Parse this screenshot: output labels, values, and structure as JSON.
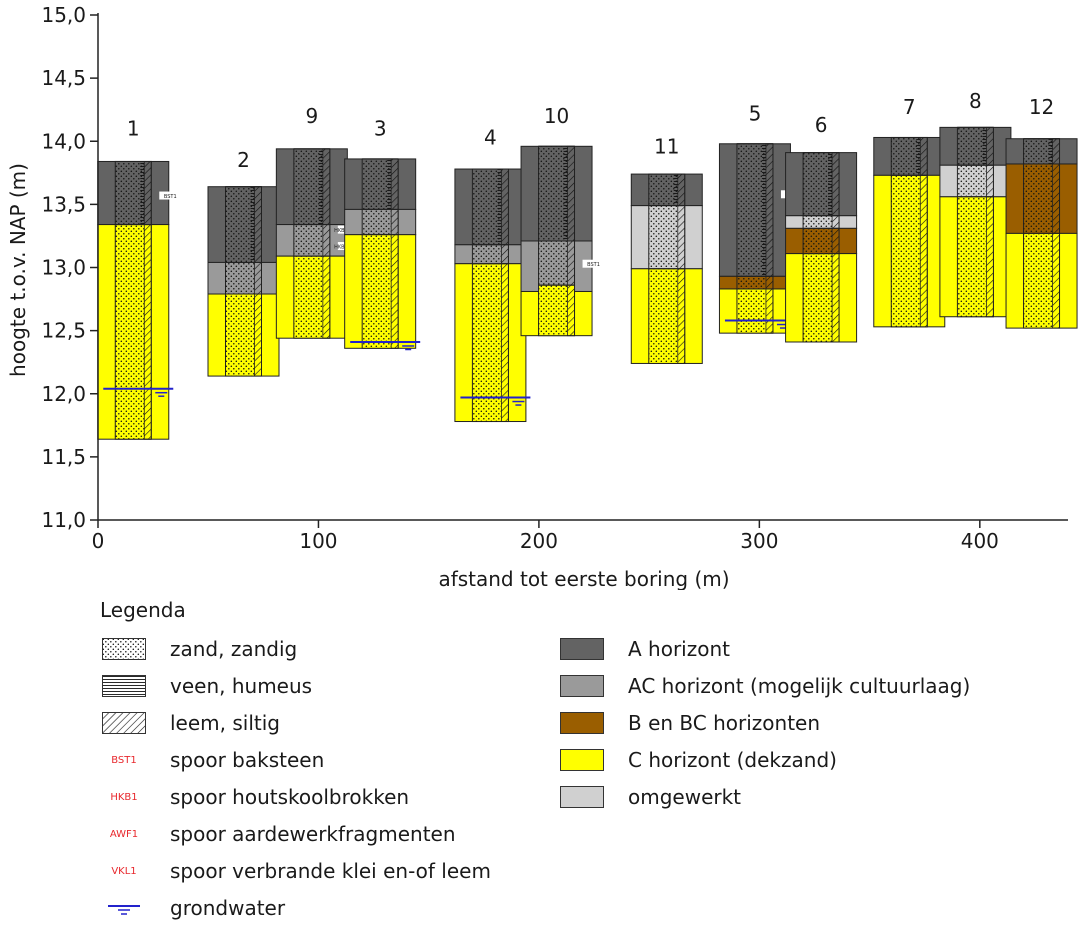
{
  "chart_data": {
    "type": "soil-profile-cross-section",
    "xlabel": "afstand tot eerste boring (m)",
    "ylabel": "hoogte t.o.v. NAP (m)",
    "xlim": [
      0,
      440
    ],
    "ylim": [
      11.0,
      15.0
    ],
    "x_ticks": [
      "0",
      "100",
      "200",
      "300",
      "400"
    ],
    "y_ticks": [
      "11,0",
      "11,5",
      "12,0",
      "12,5",
      "13,0",
      "13,5",
      "14,0",
      "14,5",
      "15,0"
    ],
    "borings": [
      {
        "label": "1",
        "x": 16,
        "top": 13.84,
        "bottom": 11.64,
        "label_y": 14.1,
        "profile": [
          {
            "from": 13.84,
            "to": 13.34,
            "horizon": "A"
          },
          {
            "from": 13.34,
            "to": 11.64,
            "horizon": "C"
          }
        ],
        "core": [
          {
            "from": 13.84,
            "to": 13.34,
            "horizon": "A"
          },
          {
            "from": 13.34,
            "to": 11.64,
            "horizon": "C"
          }
        ],
        "code_marks": [
          {
            "code": "BST1",
            "y": 13.57
          }
        ],
        "groundwater": 12.04
      },
      {
        "label": "2",
        "x": 66,
        "top": 13.64,
        "bottom": 12.14,
        "label_y": 13.85,
        "profile": [
          {
            "from": 13.64,
            "to": 13.04,
            "horizon": "A"
          },
          {
            "from": 13.04,
            "to": 12.79,
            "horizon": "AC"
          },
          {
            "from": 12.79,
            "to": 12.14,
            "horizon": "C"
          }
        ],
        "core": [
          {
            "from": 13.64,
            "to": 13.04,
            "horizon": "A"
          },
          {
            "from": 13.04,
            "to": 12.79,
            "horizon": "AC"
          },
          {
            "from": 12.79,
            "to": 12.14,
            "horizon": "C"
          }
        ],
        "code_marks": [],
        "groundwater": null
      },
      {
        "label": "9",
        "x": 97,
        "top": 13.94,
        "bottom": 12.44,
        "label_y": 14.2,
        "profile": [
          {
            "from": 13.94,
            "to": 13.34,
            "horizon": "A"
          },
          {
            "from": 13.34,
            "to": 13.09,
            "horizon": "AC"
          },
          {
            "from": 13.09,
            "to": 12.44,
            "horizon": "C"
          }
        ],
        "core": [
          {
            "from": 13.94,
            "to": 13.34,
            "horizon": "A"
          },
          {
            "from": 13.34,
            "to": 13.09,
            "horizon": "AC"
          },
          {
            "from": 13.09,
            "to": 12.44,
            "horizon": "C"
          }
        ],
        "code_marks": [
          {
            "code": "HKB1 AWF1",
            "y": 13.3
          },
          {
            "code": "HKB1 AWF1",
            "y": 13.17
          }
        ],
        "groundwater": null
      },
      {
        "label": "3",
        "x": 128,
        "top": 13.86,
        "bottom": 12.36,
        "label_y": 14.1,
        "profile": [
          {
            "from": 13.86,
            "to": 13.46,
            "horizon": "A"
          },
          {
            "from": 13.46,
            "to": 13.26,
            "horizon": "AC"
          },
          {
            "from": 13.26,
            "to": 12.36,
            "horizon": "C"
          }
        ],
        "core": [
          {
            "from": 13.86,
            "to": 13.46,
            "horizon": "A"
          },
          {
            "from": 13.46,
            "to": 13.26,
            "horizon": "AC"
          },
          {
            "from": 13.26,
            "to": 12.36,
            "horizon": "C"
          }
        ],
        "code_marks": [],
        "groundwater": 12.41
      },
      {
        "label": "4",
        "x": 178,
        "top": 13.78,
        "bottom": 11.78,
        "label_y": 14.03,
        "profile": [
          {
            "from": 13.78,
            "to": 13.18,
            "horizon": "A"
          },
          {
            "from": 13.18,
            "to": 13.03,
            "horizon": "AC"
          },
          {
            "from": 13.03,
            "to": 11.78,
            "horizon": "C"
          }
        ],
        "core": [
          {
            "from": 13.78,
            "to": 13.18,
            "horizon": "A"
          },
          {
            "from": 13.18,
            "to": 13.03,
            "horizon": "AC"
          },
          {
            "from": 13.03,
            "to": 11.78,
            "horizon": "C"
          }
        ],
        "code_marks": [],
        "groundwater": 11.97
      },
      {
        "label": "10",
        "x": 208,
        "top": 13.96,
        "bottom": 12.46,
        "label_y": 14.2,
        "profile": [
          {
            "from": 13.96,
            "to": 13.21,
            "horizon": "A"
          },
          {
            "from": 13.21,
            "to": 12.81,
            "horizon": "AC"
          },
          {
            "from": 12.81,
            "to": 12.46,
            "horizon": "C"
          }
        ],
        "core": [
          {
            "from": 13.96,
            "to": 13.21,
            "horizon": "A"
          },
          {
            "from": 13.21,
            "to": 12.86,
            "horizon": "AC"
          },
          {
            "from": 12.86,
            "to": 12.46,
            "horizon": "C"
          }
        ],
        "code_marks": [
          {
            "code": "BST1",
            "y": 13.03
          }
        ],
        "groundwater": null
      },
      {
        "label": "11",
        "x": 258,
        "top": 13.74,
        "bottom": 12.24,
        "label_y": 13.96,
        "profile": [
          {
            "from": 13.74,
            "to": 13.49,
            "horizon": "A"
          },
          {
            "from": 13.49,
            "to": 12.99,
            "horizon": "omgewerkt"
          },
          {
            "from": 12.99,
            "to": 12.24,
            "horizon": "C"
          }
        ],
        "core": [
          {
            "from": 13.74,
            "to": 13.49,
            "horizon": "A"
          },
          {
            "from": 13.49,
            "to": 12.99,
            "horizon": "omgewerkt"
          },
          {
            "from": 12.99,
            "to": 12.24,
            "horizon": "C"
          }
        ],
        "code_marks": [],
        "groundwater": null
      },
      {
        "label": "5",
        "x": 298,
        "top": 13.98,
        "bottom": 12.48,
        "label_y": 14.22,
        "profile": [
          {
            "from": 13.98,
            "to": 12.93,
            "horizon": "A"
          },
          {
            "from": 12.93,
            "to": 12.83,
            "horizon": "B"
          },
          {
            "from": 12.83,
            "to": 12.48,
            "horizon": "C"
          }
        ],
        "core": [
          {
            "from": 13.98,
            "to": 12.93,
            "horizon": "A"
          },
          {
            "from": 12.93,
            "to": 12.83,
            "horizon": "B"
          },
          {
            "from": 12.83,
            "to": 12.48,
            "horizon": "C"
          }
        ],
        "code_marks": [
          {
            "code": "BST1",
            "y": 13.58
          }
        ],
        "groundwater": 12.58
      },
      {
        "label": "6",
        "x": 328,
        "top": 13.91,
        "bottom": 12.41,
        "label_y": 14.13,
        "profile": [
          {
            "from": 13.91,
            "to": 13.41,
            "horizon": "A"
          },
          {
            "from": 13.41,
            "to": 13.31,
            "horizon": "omgewerkt"
          },
          {
            "from": 13.31,
            "to": 13.11,
            "horizon": "B"
          },
          {
            "from": 13.11,
            "to": 12.41,
            "horizon": "C"
          }
        ],
        "core": [
          {
            "from": 13.91,
            "to": 13.41,
            "horizon": "A"
          },
          {
            "from": 13.41,
            "to": 13.31,
            "horizon": "omgewerkt"
          },
          {
            "from": 13.31,
            "to": 13.11,
            "horizon": "B"
          },
          {
            "from": 13.11,
            "to": 12.41,
            "horizon": "C"
          }
        ],
        "code_marks": [],
        "groundwater": null
      },
      {
        "label": "7",
        "x": 368,
        "top": 14.03,
        "bottom": 12.53,
        "label_y": 14.27,
        "profile": [
          {
            "from": 14.03,
            "to": 13.73,
            "horizon": "A"
          },
          {
            "from": 13.73,
            "to": 12.53,
            "horizon": "C"
          }
        ],
        "core": [
          {
            "from": 14.03,
            "to": 13.73,
            "horizon": "A"
          },
          {
            "from": 13.73,
            "to": 12.53,
            "horizon": "C"
          }
        ],
        "code_marks": [],
        "groundwater": null
      },
      {
        "label": "8",
        "x": 398,
        "top": 14.11,
        "bottom": 12.61,
        "label_y": 14.32,
        "profile": [
          {
            "from": 14.11,
            "to": 13.81,
            "horizon": "A"
          },
          {
            "from": 13.81,
            "to": 13.56,
            "horizon": "omgewerkt"
          },
          {
            "from": 13.56,
            "to": 12.61,
            "horizon": "C"
          }
        ],
        "core": [
          {
            "from": 14.11,
            "to": 13.81,
            "horizon": "A"
          },
          {
            "from": 13.81,
            "to": 13.56,
            "horizon": "omgewerkt"
          },
          {
            "from": 13.56,
            "to": 12.61,
            "horizon": "C"
          }
        ],
        "code_marks": [],
        "groundwater": null
      },
      {
        "label": "12",
        "x": 428,
        "top": 14.02,
        "bottom": 12.52,
        "label_y": 14.27,
        "profile": [
          {
            "from": 14.02,
            "to": 13.82,
            "horizon": "A"
          },
          {
            "from": 13.82,
            "to": 13.27,
            "horizon": "B"
          },
          {
            "from": 13.27,
            "to": 12.52,
            "horizon": "C"
          }
        ],
        "core": [
          {
            "from": 14.02,
            "to": 13.82,
            "horizon": "A"
          },
          {
            "from": 13.82,
            "to": 13.27,
            "horizon": "B"
          },
          {
            "from": 13.27,
            "to": 12.52,
            "horizon": "C"
          }
        ],
        "code_marks": [],
        "groundwater": null
      }
    ]
  },
  "colors": {
    "A": "#636363",
    "AC": "#9a9a9a",
    "B": "#9a5e00",
    "C": "#ffff00",
    "omgewerkt": "#d0d0d0",
    "groundwater": "#2222cc",
    "code": "#e8282d"
  },
  "legend": {
    "title": "Legenda",
    "left": [
      {
        "swatch": "pattern-zand",
        "label": "zand, zandig"
      },
      {
        "swatch": "pattern-veen",
        "label": "veen, humeus"
      },
      {
        "swatch": "pattern-leem",
        "label": "leem, siltig"
      },
      {
        "swatch": "code",
        "code": "BST1",
        "label": "spoor baksteen"
      },
      {
        "swatch": "code",
        "code": "HKB1",
        "label": "spoor houtskoolbrokken"
      },
      {
        "swatch": "code",
        "code": "AWF1",
        "label": "spoor aardewerkfragmenten"
      },
      {
        "swatch": "code",
        "code": "VKL1",
        "label": "spoor verbrande klei en-of leem"
      },
      {
        "swatch": "groundwater-icon",
        "label": "grondwater"
      }
    ],
    "right": [
      {
        "swatch": "A",
        "label": "A horizont"
      },
      {
        "swatch": "AC",
        "label": "AC horizont (mogelijk cultuurlaag)"
      },
      {
        "swatch": "B",
        "label": "B en BC horizonten"
      },
      {
        "swatch": "C",
        "label": "C horizont (dekzand)"
      },
      {
        "swatch": "omgewerkt",
        "label": "omgewerkt"
      }
    ]
  }
}
